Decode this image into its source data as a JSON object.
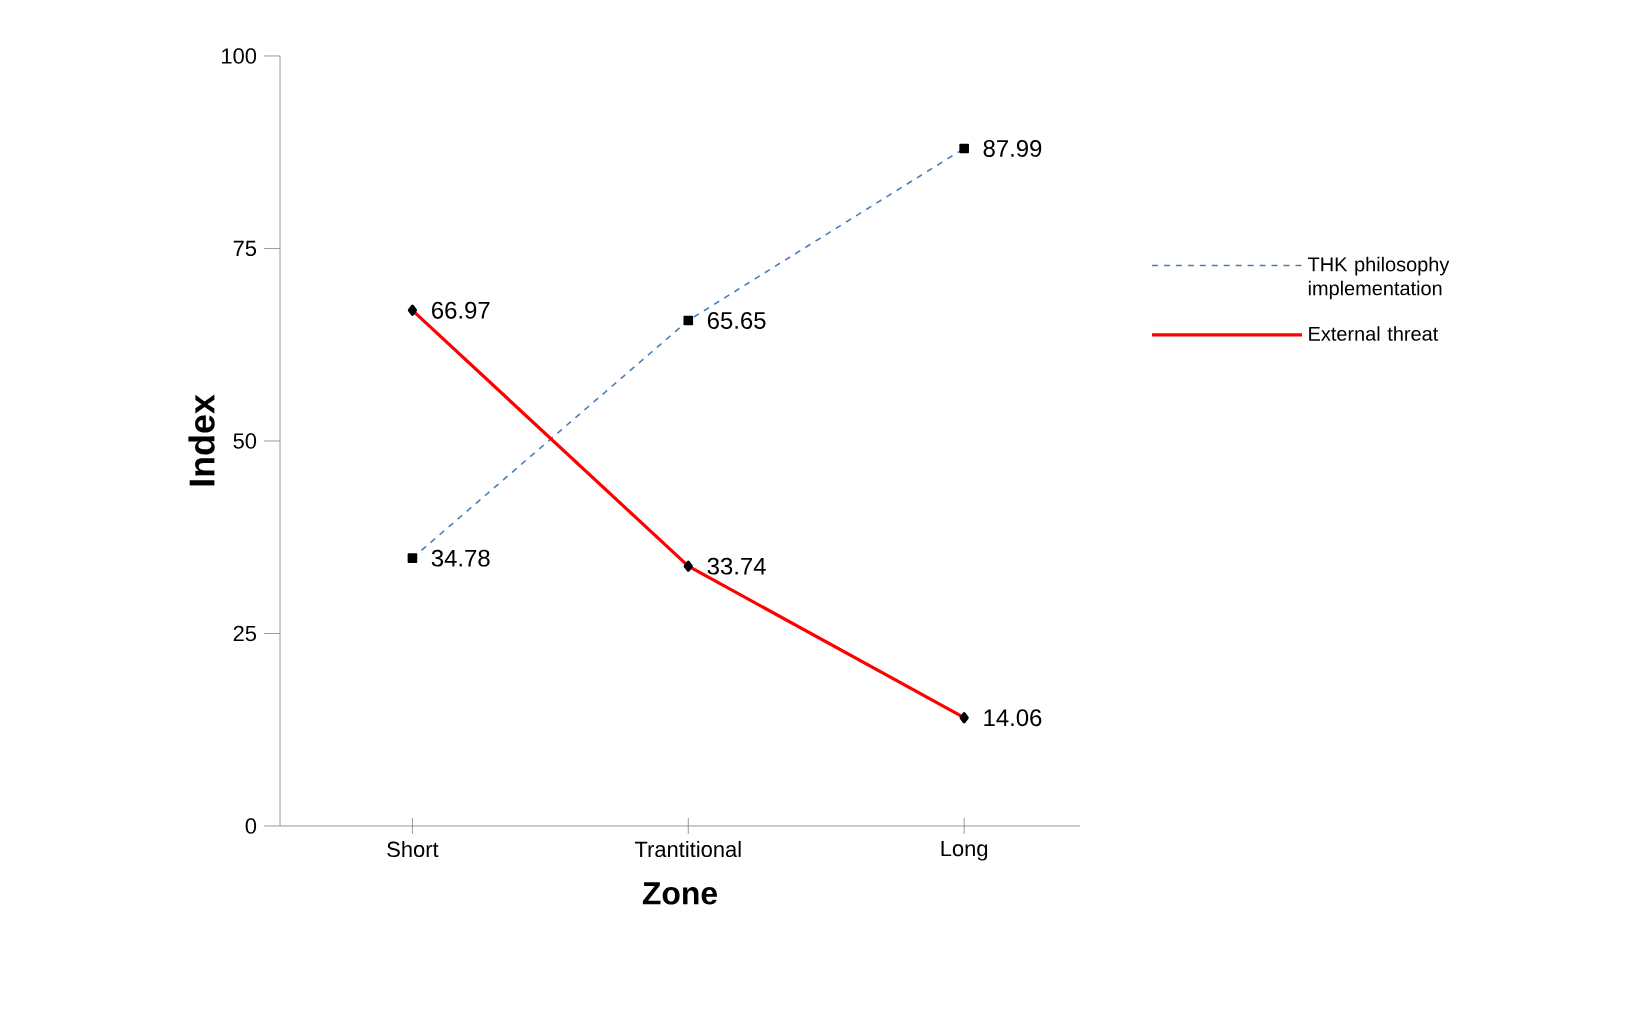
{
  "chart_data": {
    "type": "line",
    "xlabel": "Zone",
    "ylabel": "Index",
    "categories": [
      "Short",
      "Trantitional",
      "Long"
    ],
    "series": [
      {
        "name": "THK philosophy implementation",
        "color": "#4a7ebb",
        "values": [
          34.78,
          65.65,
          87.99
        ],
        "marker": "square",
        "line_style": "dashed"
      },
      {
        "name": "External threat",
        "color": "#ff0000",
        "values": [
          66.97,
          33.74,
          14.06
        ],
        "marker": "diamond",
        "line_style": "solid"
      }
    ],
    "ylim": [
      0,
      100
    ],
    "yticks": [
      0,
      25,
      50,
      75,
      100
    ],
    "grid": false,
    "legend": "right",
    "data_labels": true
  }
}
